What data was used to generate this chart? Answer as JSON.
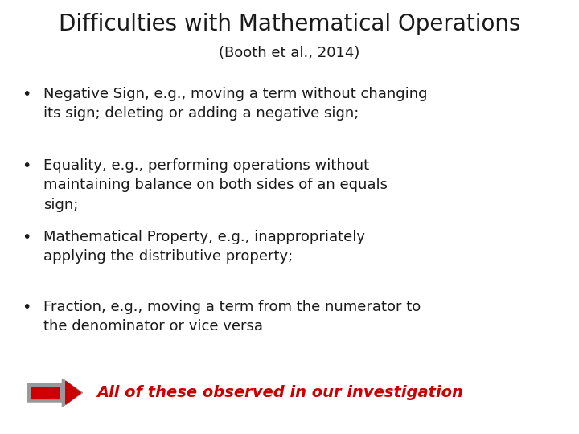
{
  "title": "Difficulties with Mathematical Operations",
  "subtitle": "(Booth et al., 2014)",
  "bullets": [
    "Negative Sign, e.g., moving a term without changing\nits sign; deleting or adding a negative sign;",
    "Equality, e.g., performing operations without\nmaintaining balance on both sides of an equals\nsign;",
    "Mathematical Property, e.g., inappropriately\napplying the distributive property;",
    "Fraction, e.g., moving a term from the numerator to\nthe denominator or vice versa"
  ],
  "arrow_label": "All of these observed in our investigation",
  "bg_color": "#ffffff",
  "title_color": "#1a1a1a",
  "subtitle_color": "#1a1a1a",
  "bullet_color": "#1a1a1a",
  "arrow_label_color": "#cc0000",
  "arrow_gray_color": "#999999",
  "arrow_red_color": "#cc0000",
  "title_fontsize": 20,
  "subtitle_fontsize": 13,
  "bullet_fontsize": 13,
  "arrow_label_fontsize": 14
}
